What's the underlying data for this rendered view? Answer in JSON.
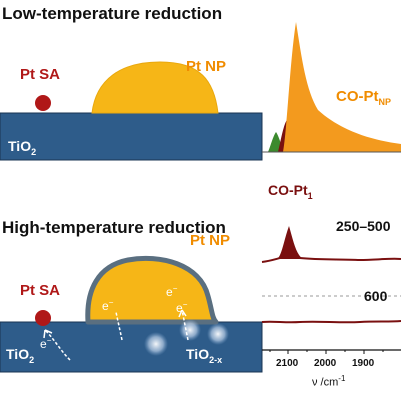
{
  "titles": {
    "low": "Low-temperature reduction",
    "high": "High-temperature reduction"
  },
  "low_panel": {
    "pt_sa": "Pt SA",
    "pt_np": "Pt NP",
    "support": "TiO",
    "support_sub": "2"
  },
  "high_panel": {
    "pt_sa": "Pt SA",
    "pt_np": "Pt NP",
    "support_left": "TiO",
    "support_left_sub": "2",
    "support_right": "TiO",
    "support_right_sub": "2-x",
    "electron": "e",
    "electron_sup": "−"
  },
  "spectra": {
    "co_ptnp": "CO-Pt",
    "co_ptnp_sub": "NP",
    "co_pt1": "CO-Pt",
    "co_pt1_sub": "1",
    "temp_1": "250–500",
    "temp_2": "600",
    "x_ticks": [
      "2100",
      "2000",
      "1900"
    ],
    "x_label": "ν /cm",
    "x_label_sup": "-1"
  },
  "colors": {
    "support": "#2e5c8a",
    "pt_np": "#f6b617",
    "pt_np_outline": "#5a6f80",
    "pt_sa": "#b01818",
    "spectrum_orange": "#f39a1e",
    "spectrum_maroon": "#7a1010",
    "spectrum_green": "#3c8a2e"
  }
}
